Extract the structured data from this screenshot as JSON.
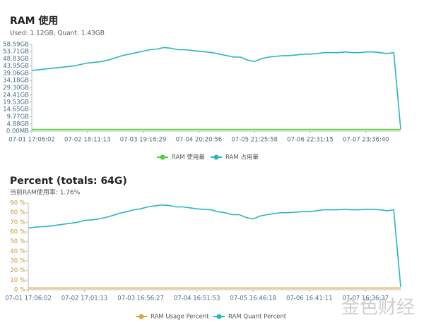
{
  "chart_data": [
    {
      "type": "line",
      "title": "RAM 使用",
      "subtitle": "Used: 1.12GB, Quant: 1.43GB",
      "categories": [
        "07-01 17:06:02",
        null,
        null,
        null,
        null,
        null,
        null,
        null,
        "07-02 18:11:13",
        null,
        null,
        null,
        null,
        null,
        null,
        null,
        "07-03 19:16:29",
        null,
        null,
        null,
        null,
        null,
        null,
        null,
        "07-04 20:20:56",
        null,
        null,
        null,
        null,
        null,
        null,
        null,
        "07-05 21:25:58",
        null,
        null,
        null,
        null,
        null,
        null,
        null,
        "07-06 22:31:15",
        null,
        null,
        null,
        null,
        null,
        null,
        null,
        "07-07 23:36:40",
        null,
        null,
        null,
        null,
        null
      ],
      "ylim": [
        0,
        58.59
      ],
      "yticks": [
        {
          "value": 0,
          "label": "0.00MB"
        },
        {
          "value": 4.88,
          "label": "4.88GB"
        },
        {
          "value": 9.77,
          "label": "9.77GB"
        },
        {
          "value": 14.65,
          "label": "14.65GB"
        },
        {
          "value": 19.53,
          "label": "19.53GB"
        },
        {
          "value": 24.41,
          "label": "24.41GB"
        },
        {
          "value": 29.3,
          "label": "29.30GB"
        },
        {
          "value": 34.18,
          "label": "34.18GB"
        },
        {
          "value": 39.06,
          "label": "39.06GB"
        },
        {
          "value": 43.95,
          "label": "43.95GB"
        },
        {
          "value": 48.83,
          "label": "48.83GB"
        },
        {
          "value": 53.71,
          "label": "53.71GB"
        },
        {
          "value": 58.59,
          "label": "58.59GB"
        }
      ],
      "tick_color": "#4a6a8a",
      "grid": false,
      "series": [
        {
          "name": "RAM 使用量",
          "color": "#4cd137",
          "values": [
            1.12,
            1.12,
            1.12,
            1.12,
            1.12,
            1.12,
            1.12,
            1.12,
            1.12,
            1.12,
            1.12,
            1.12,
            1.12,
            1.12,
            1.12,
            1.12,
            1.12,
            1.12,
            1.12,
            1.12,
            1.12,
            1.12,
            1.12,
            1.12,
            1.12,
            1.12,
            1.12,
            1.12,
            1.12,
            1.12,
            1.12,
            1.12,
            1.12,
            1.12,
            1.12,
            1.12,
            1.12,
            1.12,
            1.12,
            1.12,
            1.12,
            1.12,
            1.12,
            1.12,
            1.12,
            1.12,
            1.12,
            1.12,
            1.12,
            1.12,
            1.12,
            1.12,
            1.12,
            1.12
          ]
        },
        {
          "name": "RAM 占用量",
          "color": "#2ab4c0",
          "values": [
            41,
            41.5,
            42,
            42.5,
            43,
            43.5,
            44,
            45,
            46,
            46.5,
            47,
            48,
            49.5,
            51,
            52,
            53,
            54,
            55,
            55.5,
            56.5,
            56,
            55,
            55,
            54.5,
            54,
            53.5,
            53,
            52,
            51,
            50,
            50,
            48,
            47,
            49,
            50,
            50.5,
            51,
            51,
            51.5,
            52,
            52,
            52.5,
            53,
            53,
            53,
            53.5,
            53,
            53,
            53.5,
            53.5,
            53,
            52.5,
            53,
            1.5
          ]
        }
      ]
    },
    {
      "type": "line",
      "title": "Percent (totals:  64G)",
      "subtitle": "当前RAM使用率: 1.76%",
      "categories": [
        "07-01 17:06:02",
        null,
        null,
        null,
        null,
        null,
        null,
        null,
        "07-02 17:01:13",
        null,
        null,
        null,
        null,
        null,
        null,
        null,
        "07-03 16:56:27",
        null,
        null,
        null,
        null,
        null,
        null,
        null,
        "07-04 16:51:53",
        null,
        null,
        null,
        null,
        null,
        null,
        null,
        "07-05 16:46:18",
        null,
        null,
        null,
        null,
        null,
        null,
        null,
        "07-06 16:41:11",
        null,
        null,
        null,
        null,
        null,
        null,
        null,
        "07-07 16:36:37",
        null,
        null,
        null,
        null,
        null
      ],
      "ylim": [
        0,
        90
      ],
      "yticks": [
        {
          "value": 0,
          "label": "0 %"
        },
        {
          "value": 10,
          "label": "10 %"
        },
        {
          "value": 20,
          "label": "20 %"
        },
        {
          "value": 30,
          "label": "30 %"
        },
        {
          "value": 40,
          "label": "40 %"
        },
        {
          "value": 50,
          "label": "50 %"
        },
        {
          "value": 60,
          "label": "60 %"
        },
        {
          "value": 70,
          "label": "70 %"
        },
        {
          "value": 80,
          "label": "80 %"
        },
        {
          "value": 90,
          "label": "90 %"
        }
      ],
      "tick_color": "#c9963f",
      "grid": false,
      "series": [
        {
          "name": "RAM Usage Percent",
          "color": "#e0a43a",
          "values": [
            1.76,
            1.76,
            1.76,
            1.76,
            1.76,
            1.76,
            1.76,
            1.76,
            1.76,
            1.76,
            1.76,
            1.76,
            1.76,
            1.76,
            1.76,
            1.76,
            1.76,
            1.76,
            1.76,
            1.76,
            1.76,
            1.76,
            1.76,
            1.76,
            1.76,
            1.76,
            1.76,
            1.76,
            1.76,
            1.76,
            1.76,
            1.76,
            1.76,
            1.76,
            1.76,
            1.76,
            1.76,
            1.76,
            1.76,
            1.76,
            1.76,
            1.76,
            1.76,
            1.76,
            1.76,
            1.76,
            1.76,
            1.76,
            1.76,
            1.76,
            1.76,
            1.76,
            1.76,
            1.76
          ]
        },
        {
          "name": "RAM Quant Percent",
          "color": "#2ab4c0",
          "values": [
            64,
            65,
            65.5,
            66,
            67,
            68,
            69,
            70,
            72,
            72.5,
            73.5,
            75,
            77,
            79.5,
            81,
            83,
            84,
            86,
            87,
            88,
            87.5,
            86,
            86,
            85,
            84,
            83.5,
            83,
            81,
            80,
            78,
            78,
            75,
            73.5,
            76.5,
            78,
            79,
            80,
            80,
            80.5,
            81,
            81,
            82,
            83,
            83,
            83,
            83.5,
            83,
            83,
            83.5,
            83.5,
            83,
            82,
            83,
            3
          ]
        }
      ]
    }
  ],
  "watermark": "金色财经"
}
